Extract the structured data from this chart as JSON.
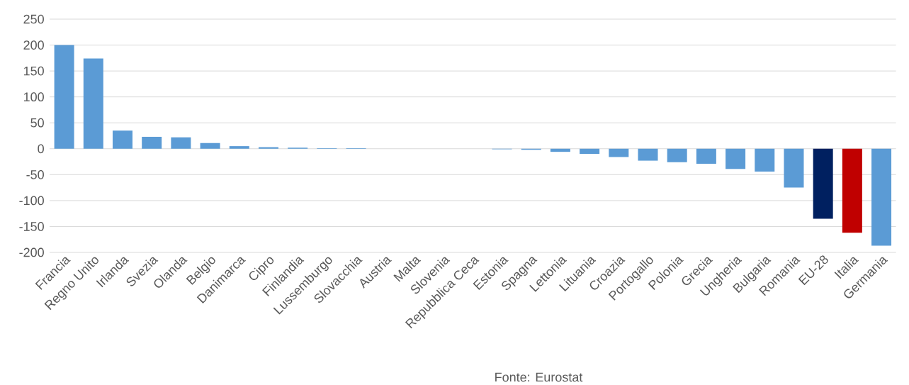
{
  "chart_data": {
    "type": "bar",
    "categories": [
      "Francia",
      "Regno Unito",
      "Irlanda",
      "Svezia",
      "Olanda",
      "Belgio",
      "Danimarca",
      "Cipro",
      "Finlandia",
      "Lussemburgo",
      "Slovacchia",
      "Austria",
      "Malta",
      "Slovenia",
      "Repubblica Ceca",
      "Estonia",
      "Spagna",
      "Lettonia",
      "Lituania",
      "Croazia",
      "Portogallo",
      "Polonia",
      "Grecia",
      "Ungheria",
      "Bulgaria",
      "Romania",
      "EU-28",
      "Italia",
      "Germania"
    ],
    "values": [
      200,
      174,
      35,
      23,
      22,
      11,
      5,
      3,
      2,
      1,
      1,
      0,
      0,
      0,
      0,
      -1,
      -2,
      -6,
      -10,
      -16,
      -23,
      -26,
      -29,
      -39,
      -44,
      -75,
      -135,
      -162,
      -187
    ],
    "colors": [
      "#5b9bd5",
      "#5b9bd5",
      "#5b9bd5",
      "#5b9bd5",
      "#5b9bd5",
      "#5b9bd5",
      "#5b9bd5",
      "#5b9bd5",
      "#5b9bd5",
      "#5b9bd5",
      "#5b9bd5",
      "#5b9bd5",
      "#5b9bd5",
      "#5b9bd5",
      "#5b9bd5",
      "#5b9bd5",
      "#5b9bd5",
      "#5b9bd5",
      "#5b9bd5",
      "#5b9bd5",
      "#5b9bd5",
      "#5b9bd5",
      "#5b9bd5",
      "#5b9bd5",
      "#5b9bd5",
      "#5b9bd5",
      "#002060",
      "#c00000",
      "#5b9bd5"
    ],
    "ylim": [
      -200,
      250
    ],
    "yticks": [
      -200,
      -150,
      -100,
      -50,
      0,
      50,
      100,
      150,
      200,
      250
    ],
    "grid": "y",
    "annotations": [
      "Fonte: Eurostat"
    ]
  }
}
